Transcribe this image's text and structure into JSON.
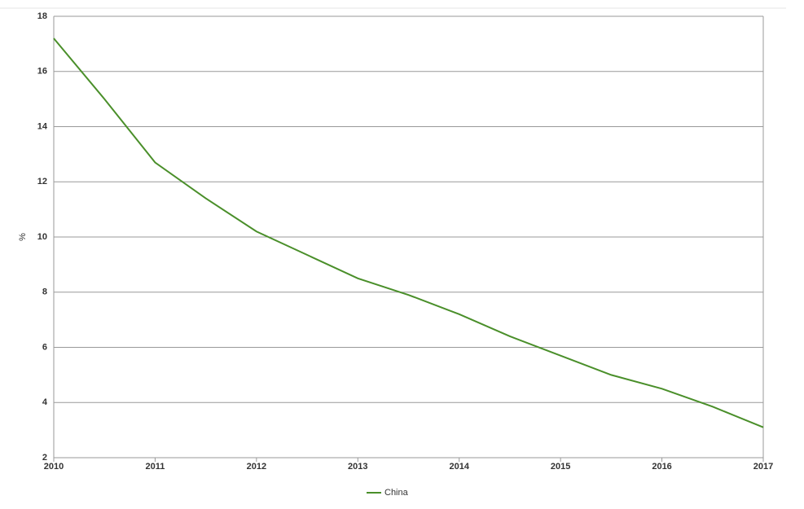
{
  "chart_data": {
    "type": "line",
    "y_label": "%",
    "x": [
      2010,
      2010.5,
      2011,
      2011.5,
      2012,
      2012.5,
      2013,
      2013.5,
      2014,
      2014.5,
      2015,
      2015.5,
      2016,
      2016.5,
      2017
    ],
    "series": [
      {
        "name": "China",
        "color": "#4a8f2a",
        "values": [
          17.2,
          15.0,
          12.7,
          11.4,
          10.2,
          9.35,
          8.5,
          7.9,
          7.2,
          6.4,
          5.7,
          5.0,
          4.5,
          3.85,
          3.1
        ]
      }
    ],
    "xlim": [
      2010,
      2017
    ],
    "xticks": [
      2010,
      2011,
      2012,
      2013,
      2014,
      2015,
      2016,
      2017
    ],
    "ylim": [
      2,
      18
    ],
    "yticks": [
      2,
      4,
      6,
      8,
      10,
      12,
      14,
      16,
      18
    ],
    "grid": true,
    "legend": "bottom"
  }
}
